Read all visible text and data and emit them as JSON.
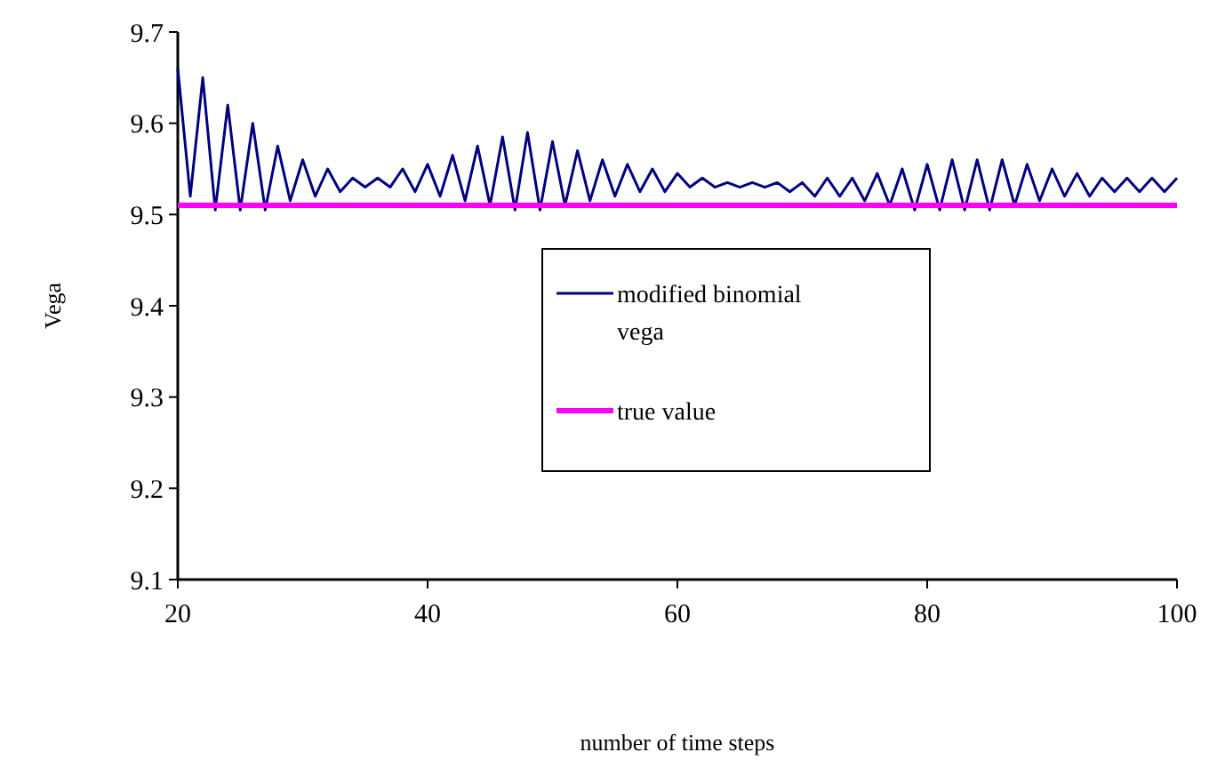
{
  "chart_data": {
    "type": "line",
    "xlabel": "number of time steps",
    "ylabel": "Vega",
    "x": [
      20,
      21,
      22,
      23,
      24,
      25,
      26,
      27,
      28,
      29,
      30,
      31,
      32,
      33,
      34,
      35,
      36,
      37,
      38,
      39,
      40,
      41,
      42,
      43,
      44,
      45,
      46,
      47,
      48,
      49,
      50,
      51,
      52,
      53,
      54,
      55,
      56,
      57,
      58,
      59,
      60,
      61,
      62,
      63,
      64,
      65,
      66,
      67,
      68,
      69,
      70,
      71,
      72,
      73,
      74,
      75,
      76,
      77,
      78,
      79,
      80,
      81,
      82,
      83,
      84,
      85,
      86,
      87,
      88,
      89,
      90,
      91,
      92,
      93,
      94,
      95,
      96,
      97,
      98,
      99,
      100
    ],
    "series": [
      {
        "name": "modified binomial vega",
        "color": "#000080",
        "values": [
          9.66,
          9.52,
          9.65,
          9.505,
          9.62,
          9.505,
          9.6,
          9.505,
          9.575,
          9.515,
          9.56,
          9.52,
          9.55,
          9.525,
          9.54,
          9.53,
          9.54,
          9.53,
          9.55,
          9.525,
          9.555,
          9.52,
          9.565,
          9.515,
          9.575,
          9.51,
          9.585,
          9.505,
          9.59,
          9.505,
          9.58,
          9.51,
          9.57,
          9.515,
          9.56,
          9.52,
          9.555,
          9.525,
          9.55,
          9.525,
          9.545,
          9.53,
          9.54,
          9.53,
          9.535,
          9.53,
          9.535,
          9.53,
          9.535,
          9.525,
          9.535,
          9.52,
          9.54,
          9.52,
          9.54,
          9.515,
          9.545,
          9.51,
          9.55,
          9.505,
          9.555,
          9.505,
          9.56,
          9.505,
          9.56,
          9.505,
          9.56,
          9.51,
          9.555,
          9.515,
          9.55,
          9.52,
          9.545,
          9.52,
          9.54,
          9.525,
          9.54,
          9.525,
          9.54,
          9.525,
          9.54
        ]
      },
      {
        "name": "true value",
        "color": "#ff00ff",
        "values": [
          9.51,
          9.51,
          9.51,
          9.51,
          9.51,
          9.51,
          9.51,
          9.51,
          9.51,
          9.51,
          9.51,
          9.51,
          9.51,
          9.51,
          9.51,
          9.51,
          9.51,
          9.51,
          9.51,
          9.51,
          9.51,
          9.51,
          9.51,
          9.51,
          9.51,
          9.51,
          9.51,
          9.51,
          9.51,
          9.51,
          9.51,
          9.51,
          9.51,
          9.51,
          9.51,
          9.51,
          9.51,
          9.51,
          9.51,
          9.51,
          9.51,
          9.51,
          9.51,
          9.51,
          9.51,
          9.51,
          9.51,
          9.51,
          9.51,
          9.51,
          9.51,
          9.51,
          9.51,
          9.51,
          9.51,
          9.51,
          9.51,
          9.51,
          9.51,
          9.51,
          9.51,
          9.51,
          9.51,
          9.51,
          9.51,
          9.51,
          9.51,
          9.51,
          9.51,
          9.51,
          9.51,
          9.51,
          9.51,
          9.51,
          9.51,
          9.51,
          9.51,
          9.51,
          9.51,
          9.51,
          9.51
        ]
      }
    ],
    "xlim": [
      20,
      100
    ],
    "xticks": [
      20,
      40,
      60,
      80,
      100
    ],
    "ylim": [
      9.1,
      9.7
    ],
    "yticks": [
      {
        "value": 9.1,
        "label": "9.1"
      },
      {
        "value": 9.2,
        "label": "9.2"
      },
      {
        "value": 9.3,
        "label": "9.3"
      },
      {
        "value": 9.4,
        "label": "9.4"
      },
      {
        "value": 9.5,
        "label": "9.5"
      },
      {
        "value": 9.6,
        "label": "9.6"
      },
      {
        "value": 9.7,
        "label": "9.7"
      }
    ],
    "grid": false,
    "legend": "right"
  }
}
